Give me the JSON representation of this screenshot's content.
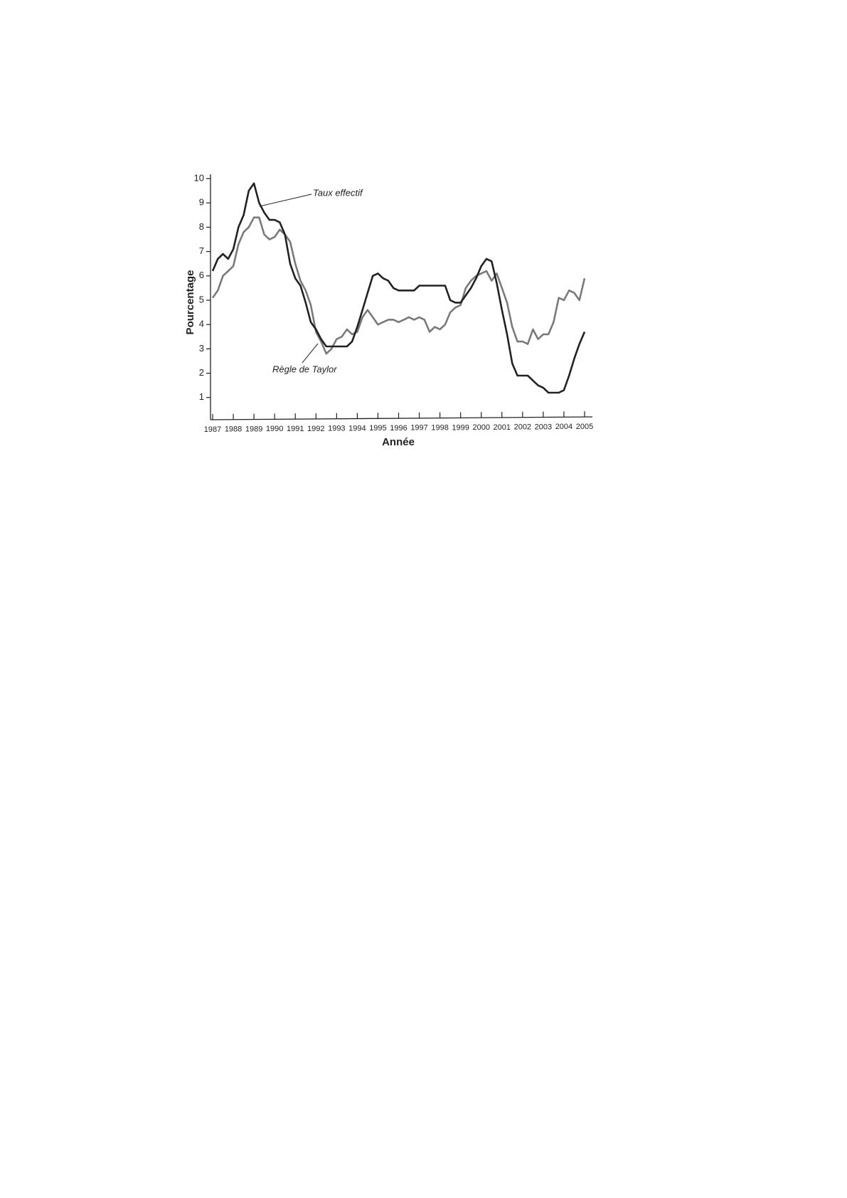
{
  "chart_data": {
    "type": "line",
    "x_label": "Année",
    "y_label": "Pourcentage",
    "x": [
      1987,
      1987.25,
      1987.5,
      1987.75,
      1988,
      1988.25,
      1988.5,
      1988.75,
      1989,
      1989.25,
      1989.5,
      1989.75,
      1990,
      1990.25,
      1990.5,
      1990.75,
      1991,
      1991.25,
      1991.5,
      1991.75,
      1992,
      1992.25,
      1992.5,
      1992.75,
      1993,
      1993.25,
      1993.5,
      1993.75,
      1994,
      1994.25,
      1994.5,
      1994.75,
      1995,
      1995.25,
      1995.5,
      1995.75,
      1996,
      1996.25,
      1996.5,
      1996.75,
      1997,
      1997.25,
      1997.5,
      1997.75,
      1998,
      1998.25,
      1998.5,
      1998.75,
      1999,
      1999.25,
      1999.5,
      1999.75,
      2000,
      2000.25,
      2000.5,
      2000.75,
      2001,
      2001.25,
      2001.5,
      2001.75,
      2002,
      2002.25,
      2002.5,
      2002.75,
      2003,
      2003.25,
      2003.5,
      2003.75,
      2004,
      2004.25,
      2004.5,
      2004.75,
      2005
    ],
    "series": [
      {
        "name": "Taux effectif",
        "color": "#222222",
        "values": [
          6.2,
          6.7,
          6.9,
          6.7,
          7.1,
          8.0,
          8.5,
          9.5,
          9.8,
          9.0,
          8.6,
          8.3,
          8.3,
          8.2,
          7.7,
          6.5,
          5.9,
          5.6,
          4.9,
          4.1,
          3.8,
          3.4,
          3.1,
          3.1,
          3.1,
          3.1,
          3.1,
          3.3,
          3.9,
          4.6,
          5.3,
          6.0,
          6.1,
          5.9,
          5.8,
          5.5,
          5.4,
          5.4,
          5.4,
          5.4,
          5.6,
          5.6,
          5.6,
          5.6,
          5.6,
          5.6,
          5.0,
          4.9,
          4.9,
          5.2,
          5.5,
          5.9,
          6.4,
          6.7,
          6.6,
          5.7,
          4.6,
          3.6,
          2.4,
          1.9,
          1.9,
          1.9,
          1.7,
          1.5,
          1.4,
          1.2,
          1.2,
          1.2,
          1.3,
          1.9,
          2.6,
          3.2,
          3.7
        ]
      },
      {
        "name": "Règle de Taylor",
        "color": "#7a7a7a",
        "values": [
          5.1,
          5.4,
          6.0,
          6.2,
          6.4,
          7.3,
          7.8,
          8.0,
          8.4,
          8.4,
          7.7,
          7.5,
          7.6,
          7.9,
          7.7,
          7.4,
          6.5,
          5.8,
          5.4,
          4.8,
          3.7,
          3.3,
          2.8,
          3.0,
          3.4,
          3.5,
          3.8,
          3.6,
          3.7,
          4.3,
          4.6,
          4.3,
          4.0,
          4.1,
          4.2,
          4.2,
          4.1,
          4.2,
          4.3,
          4.2,
          4.3,
          4.2,
          3.7,
          3.9,
          3.8,
          4.0,
          4.5,
          4.7,
          4.8,
          5.5,
          5.8,
          6.0,
          6.1,
          6.2,
          5.8,
          6.1,
          5.5,
          4.9,
          3.9,
          3.3,
          3.3,
          3.2,
          3.8,
          3.4,
          3.6,
          3.6,
          4.1,
          5.1,
          5.0,
          5.4,
          5.3,
          5.0,
          5.9
        ]
      }
    ],
    "xlim": [
      1987,
      2005
    ],
    "ylim": [
      0,
      10
    ],
    "xticks": [
      1987,
      1988,
      1989,
      1990,
      1991,
      1992,
      1993,
      1994,
      1995,
      1996,
      1997,
      1998,
      1999,
      2000,
      2001,
      2002,
      2003,
      2004,
      2005
    ],
    "yticks": [
      1,
      2,
      3,
      4,
      5,
      6,
      7,
      8,
      9,
      10
    ]
  }
}
